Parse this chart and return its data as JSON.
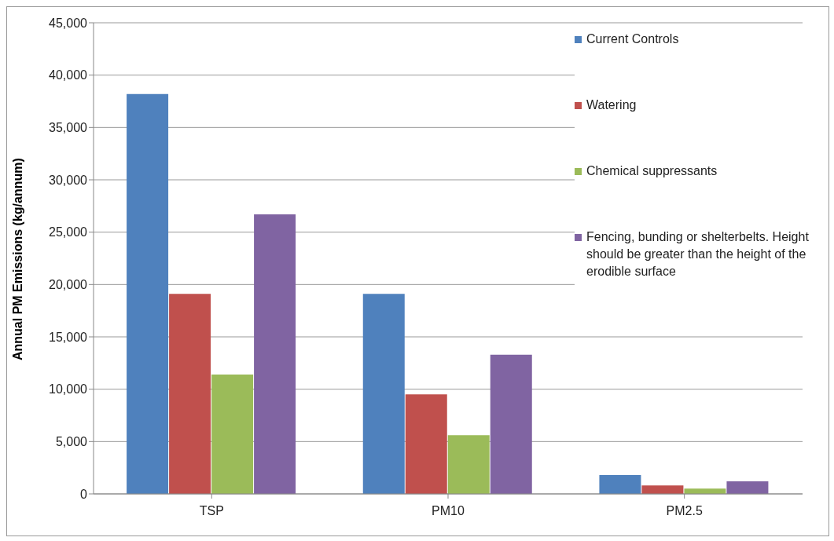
{
  "chart_data": {
    "type": "bar",
    "ylabel": "Annual PM Emissions (kg/annum)",
    "categories": [
      "TSP",
      "PM10",
      "PM2.5"
    ],
    "series": [
      {
        "name": "Current Controls",
        "color": "#4f81bd",
        "values": [
          38200,
          19100,
          1800
        ]
      },
      {
        "name": "Watering",
        "color": "#c0504d",
        "values": [
          19100,
          9500,
          800
        ]
      },
      {
        "name": "Chemical suppressants",
        "color": "#9bbb59",
        "values": [
          11400,
          5600,
          500
        ]
      },
      {
        "name": "Fencing, bunding or shelterbelts. Height should be greater than the height of the erodible surface",
        "color": "#8064a2",
        "values": [
          26700,
          13300,
          1200
        ]
      }
    ],
    "ylim": [
      0,
      45000
    ],
    "yticks": [
      0,
      {
        "value": 5000,
        "label": "5,000"
      },
      {
        "value": 10000,
        "label": "10,000"
      },
      {
        "value": 15000,
        "label": "15,000"
      },
      {
        "value": 20000,
        "label": "20,000"
      },
      {
        "value": 25000,
        "label": "25,000"
      },
      {
        "value": 30000,
        "label": "30,000"
      },
      {
        "value": 35000,
        "label": "35,000"
      },
      {
        "value": 40000,
        "label": "40,000"
      },
      {
        "value": 45000,
        "label": "45,000"
      }
    ],
    "grid": "y",
    "legend": "top right"
  }
}
